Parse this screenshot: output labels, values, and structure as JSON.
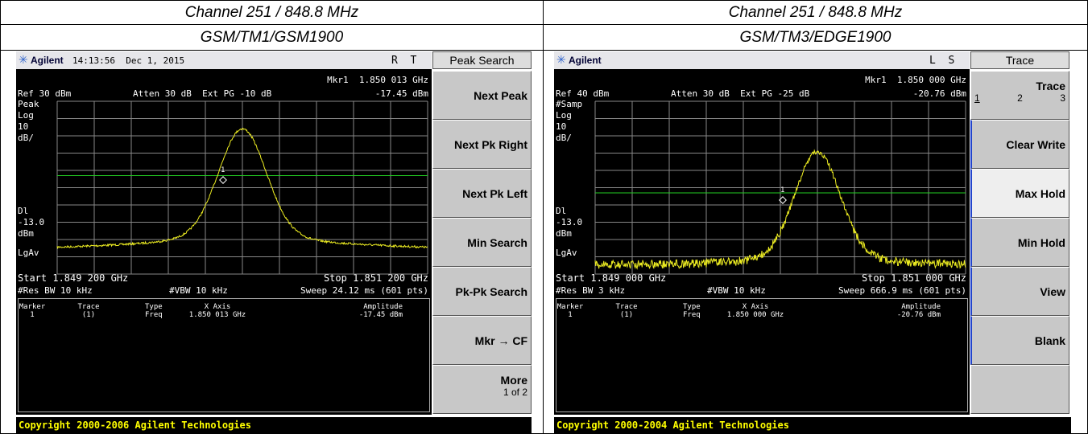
{
  "header": {
    "row1": [
      "Channel 251 / 848.8 MHz",
      "Channel 251 / 848.8 MHz"
    ],
    "row2": [
      "GSM/TM1/GSM1900",
      "GSM/TM3/EDGE1900"
    ]
  },
  "screens": [
    {
      "brand": "Agilent",
      "datetime": "14:13:56  Dec 1, 2015",
      "status": "R  T",
      "menu_title": "Peak Search",
      "marker_readout": "Mkr1  1.850 013 GHz",
      "ref": "Ref 30 dBm",
      "atten": "Atten 30 dB  Ext PG -10 dB",
      "amplitude": "-17.45 dBm",
      "left_labels": [
        "Peak",
        "Log",
        "10",
        "dB/"
      ],
      "dl_labels": [
        "Dl",
        "-13.0",
        "dBm"
      ],
      "avg": "LgAv",
      "marker_id": "1",
      "start": "Start 1.849 200 GHz",
      "stop": "Stop 1.851 200 GHz",
      "res_bw": "#Res BW 10 kHz",
      "vbw": "#VBW 10 kHz",
      "sweep": "Sweep 24.12 ms (601 pts)",
      "table_headers": [
        "Marker",
        "Trace",
        "Type",
        "X Axis",
        "Amplitude"
      ],
      "table_row": [
        "1",
        "(1)",
        "Freq",
        "1.850 013 GHz",
        "-17.45 dBm"
      ],
      "softkeys": [
        {
          "label": "Next Peak"
        },
        {
          "label": "Next Pk Right"
        },
        {
          "label": "Next Pk Left"
        },
        {
          "label": "Min Search"
        },
        {
          "label": "Pk-Pk Search"
        },
        {
          "label": "Mkr → CF"
        },
        {
          "label": "More",
          "sub": [
            "1 of 2"
          ]
        }
      ],
      "copyright": "Copyright 2000-2006 Agilent Technologies"
    },
    {
      "brand": "Agilent",
      "status": "L  S",
      "menu_title": "Trace",
      "marker_readout": "Mkr1  1.850 000 GHz",
      "ref": "Ref 40 dBm",
      "atten": "Atten 30 dB  Ext PG -25 dB",
      "amplitude": "-20.76 dBm",
      "left_labels": [
        "#Samp",
        "Log",
        "10",
        "dB/"
      ],
      "dl_labels": [
        "Dl",
        "-13.0",
        "dBm"
      ],
      "avg": "LgAv",
      "marker_id": "1",
      "start": "Start 1.849 000 GHz",
      "stop": "Stop 1.851 000 GHz",
      "res_bw": "#Res BW 3 kHz",
      "vbw": "#VBW 10 kHz",
      "sweep": "Sweep 666.9 ms (601 pts)",
      "table_headers": [
        "Marker",
        "Trace",
        "Type",
        "X Axis",
        "Amplitude"
      ],
      "table_row": [
        "1",
        "(1)",
        "Freq",
        "1.850 000 GHz",
        "-20.76 dBm"
      ],
      "softkeys": [
        {
          "label": "Trace",
          "sub": [
            "1",
            "2",
            "3"
          ]
        },
        {
          "label": "Clear Write"
        },
        {
          "label": "Max Hold"
        },
        {
          "label": "Min Hold"
        },
        {
          "label": "View"
        },
        {
          "label": "Blank"
        },
        {}
      ],
      "copyright": "Copyright 2000-2004 Agilent Technologies"
    }
  ]
}
